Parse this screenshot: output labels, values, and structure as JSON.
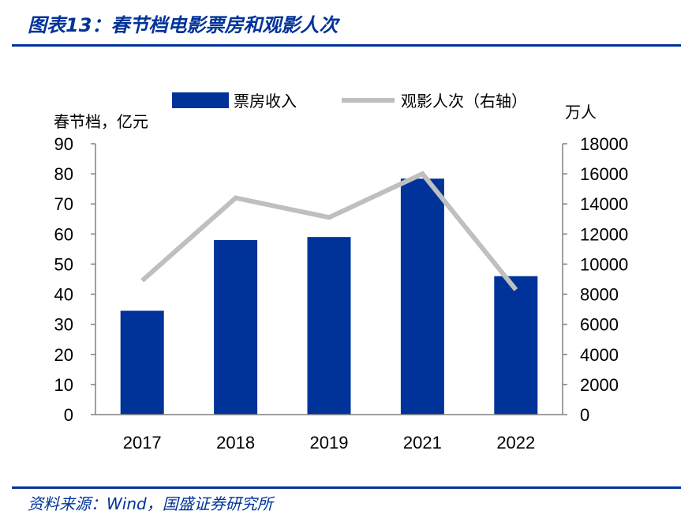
{
  "figure_title": "图表13：春节档电影票房和观影人次",
  "source": "资料来源：Wind，国盛证券研究所",
  "colors": {
    "bar": "#003399",
    "line": "#bfbfbf",
    "accent": "#003399"
  },
  "chart_data": {
    "type": "bar",
    "categories": [
      "2017",
      "2018",
      "2019",
      "2021",
      "2022"
    ],
    "series": [
      {
        "name": "票房收入",
        "type": "bar",
        "axis": "left",
        "values": [
          34.5,
          58,
          59,
          78.4,
          46
        ]
      },
      {
        "name": "观影人次（右轴）",
        "type": "line",
        "axis": "right",
        "values": [
          8900,
          14400,
          13100,
          16000,
          8300
        ]
      }
    ],
    "ylabel": "春节档，亿元",
    "y2label": "万人",
    "ylim": [
      0,
      90
    ],
    "y2lim": [
      0,
      18000
    ],
    "yticks": [
      "0",
      "10",
      "20",
      "30",
      "40",
      "50",
      "60",
      "70",
      "80",
      "90"
    ],
    "y2ticks": [
      "0",
      "2000",
      "4000",
      "6000",
      "8000",
      "10000",
      "12000",
      "14000",
      "16000",
      "18000"
    ],
    "legend_position": "top",
    "grid": false
  }
}
